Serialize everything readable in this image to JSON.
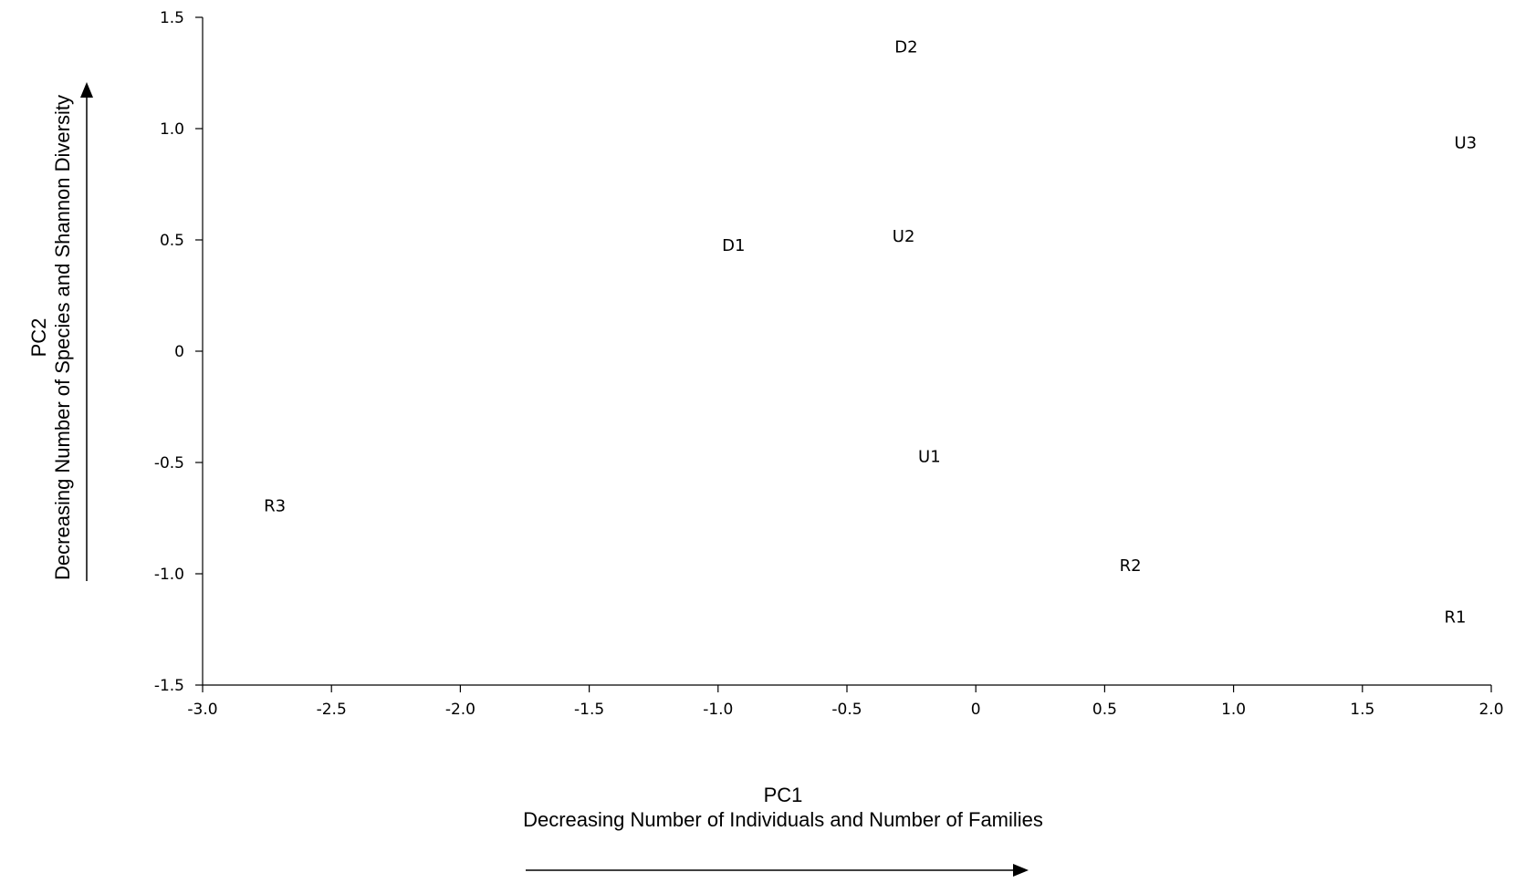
{
  "chart_data": {
    "type": "scatter",
    "title": "",
    "xlabel": "PC1",
    "xlabel_subtitle": "Decreasing Number of Individuals and Number of Families",
    "ylabel": "PC2",
    "ylabel_subtitle": "Decreasing Number of Species and Shannon Diversity",
    "xlim": [
      -3.0,
      2.0
    ],
    "ylim": [
      -1.5,
      1.5
    ],
    "x_ticks": [
      {
        "value": -3.0,
        "label": "-3.0"
      },
      {
        "value": -2.5,
        "label": "-2.5"
      },
      {
        "value": -2.0,
        "label": "-2.0"
      },
      {
        "value": -1.5,
        "label": "-1.5"
      },
      {
        "value": -1.0,
        "label": "-1.0"
      },
      {
        "value": -0.5,
        "label": "-0.5"
      },
      {
        "value": 0,
        "label": "0"
      },
      {
        "value": 0.5,
        "label": "0.5"
      },
      {
        "value": 1.0,
        "label": "1.0"
      },
      {
        "value": 1.5,
        "label": "1.5"
      },
      {
        "value": 2.0,
        "label": "2.0"
      }
    ],
    "y_ticks": [
      {
        "value": 1.5,
        "label": "1.5"
      },
      {
        "value": 1.0,
        "label": "1.0"
      },
      {
        "value": 0.5,
        "label": "0.5"
      },
      {
        "value": 0,
        "label": "0"
      },
      {
        "value": -0.5,
        "label": "-0.5"
      },
      {
        "value": -1.0,
        "label": "-1.0"
      },
      {
        "value": -1.5,
        "label": "-1.5"
      }
    ],
    "grid": false,
    "marker": "text-label",
    "points": [
      {
        "label": "D2",
        "x": -0.27,
        "y": 1.37
      },
      {
        "label": "U3",
        "x": 1.9,
        "y": 0.94
      },
      {
        "label": "D1",
        "x": -0.94,
        "y": 0.48
      },
      {
        "label": "U2",
        "x": -0.28,
        "y": 0.52
      },
      {
        "label": "U1",
        "x": -0.18,
        "y": -0.47
      },
      {
        "label": "R3",
        "x": -2.72,
        "y": -0.69
      },
      {
        "label": "R2",
        "x": 0.6,
        "y": -0.96
      },
      {
        "label": "R1",
        "x": 1.86,
        "y": -1.19
      }
    ]
  }
}
